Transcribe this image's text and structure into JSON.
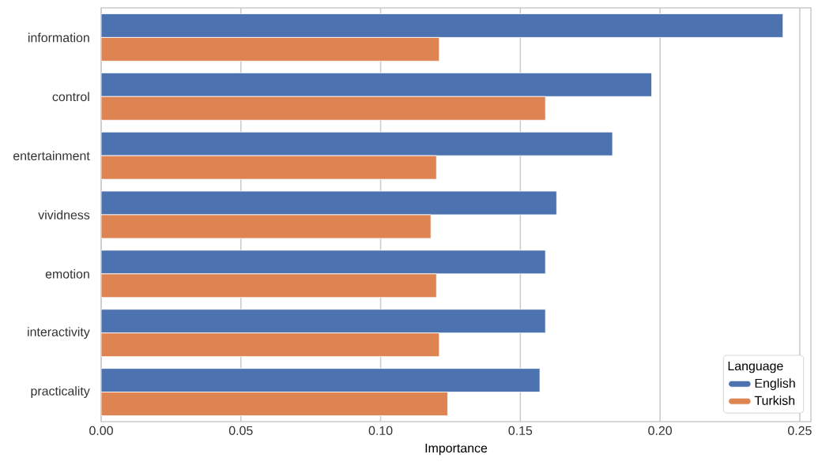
{
  "chart_data": {
    "type": "bar",
    "orientation": "horizontal",
    "xlabel": "Importance",
    "legend_title": "Language",
    "categories": [
      "information",
      "control",
      "entertainment",
      "vividness",
      "emotion",
      "interactivity",
      "practicality"
    ],
    "series": [
      {
        "name": "English",
        "color": "#4c72b0",
        "values": [
          0.244,
          0.197,
          0.183,
          0.163,
          0.159,
          0.159,
          0.157
        ]
      },
      {
        "name": "Turkish",
        "color": "#dd8452",
        "values": [
          0.121,
          0.159,
          0.12,
          0.118,
          0.12,
          0.121,
          0.124
        ]
      }
    ],
    "xlim": [
      0,
      0.254
    ],
    "xticks": [
      {
        "value": 0,
        "label": "0.00"
      },
      {
        "value": 0.05,
        "label": "0.05"
      },
      {
        "value": 0.1,
        "label": "0.10"
      },
      {
        "value": 0.15,
        "label": "0.15"
      },
      {
        "value": 0.2,
        "label": "0.20"
      },
      {
        "value": 0.25,
        "label": "0.25"
      }
    ],
    "grid": "x",
    "legend": "bottom right"
  }
}
